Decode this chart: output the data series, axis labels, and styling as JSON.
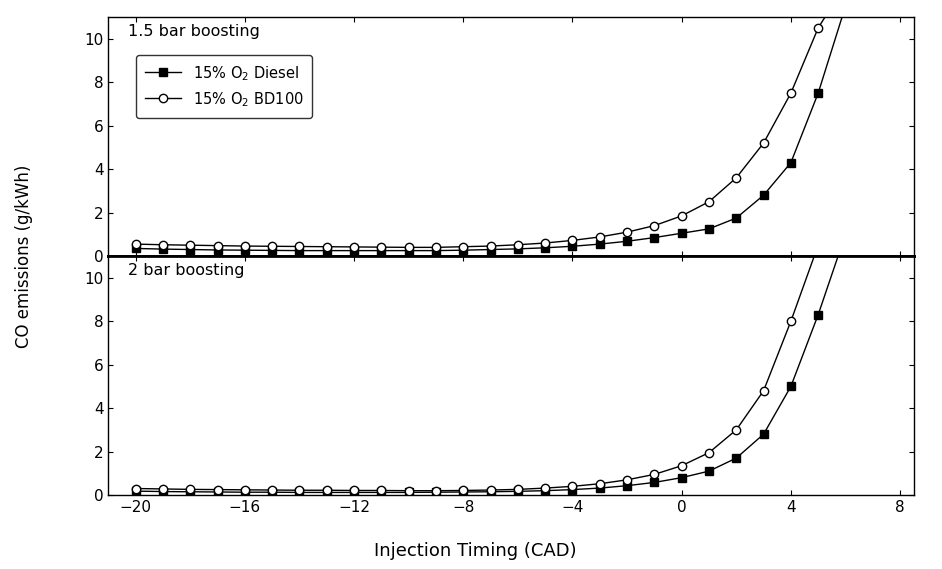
{
  "xlabel": "Injection Timing (CAD)",
  "ylabel": "CO emissions (g/kWh)",
  "xlim": [
    -21,
    8.5
  ],
  "xticks": [
    -20,
    -16,
    -12,
    -8,
    -4,
    0,
    4,
    8
  ],
  "top_label": "1.5 bar boosting",
  "bottom_label": "2 bar boosting",
  "ylim": [
    0,
    11
  ],
  "yticks": [
    0,
    2,
    4,
    6,
    8,
    10
  ],
  "legend_labels": [
    "15% O$_2$ Diesel",
    "15% O$_2$ BD100"
  ],
  "top_diesel_x": [
    -20,
    -19,
    -18,
    -17,
    -16,
    -15,
    -14,
    -13,
    -12,
    -11,
    -10,
    -9,
    -8,
    -7,
    -6,
    -5,
    -4,
    -3,
    -2,
    -1,
    0,
    1,
    2,
    3,
    4,
    5,
    6
  ],
  "top_diesel_y": [
    0.35,
    0.32,
    0.3,
    0.28,
    0.27,
    0.26,
    0.25,
    0.25,
    0.25,
    0.25,
    0.25,
    0.25,
    0.27,
    0.3,
    0.33,
    0.38,
    0.45,
    0.55,
    0.68,
    0.85,
    1.05,
    1.25,
    1.75,
    2.8,
    4.3,
    7.5,
    11.5
  ],
  "top_bd100_x": [
    -20,
    -19,
    -18,
    -17,
    -16,
    -15,
    -14,
    -13,
    -12,
    -11,
    -10,
    -9,
    -8,
    -7,
    -6,
    -5,
    -4,
    -3,
    -2,
    -1,
    0,
    1,
    2,
    3,
    4,
    5,
    6
  ],
  "top_bd100_y": [
    0.55,
    0.52,
    0.5,
    0.48,
    0.46,
    0.45,
    0.44,
    0.43,
    0.42,
    0.41,
    0.4,
    0.4,
    0.43,
    0.46,
    0.52,
    0.6,
    0.72,
    0.88,
    1.1,
    1.4,
    1.85,
    2.5,
    3.6,
    5.2,
    7.5,
    10.5,
    12.5
  ],
  "bot_diesel_x": [
    -20,
    -19,
    -18,
    -17,
    -16,
    -15,
    -14,
    -13,
    -12,
    -11,
    -10,
    -9,
    -8,
    -7,
    -6,
    -5,
    -4,
    -3,
    -2,
    -1,
    0,
    1,
    2,
    3,
    4,
    5,
    6
  ],
  "bot_diesel_y": [
    0.18,
    0.16,
    0.15,
    0.14,
    0.13,
    0.13,
    0.12,
    0.12,
    0.12,
    0.12,
    0.12,
    0.13,
    0.14,
    0.15,
    0.17,
    0.2,
    0.25,
    0.32,
    0.43,
    0.58,
    0.8,
    1.1,
    1.7,
    2.8,
    5.0,
    8.3,
    12.0
  ],
  "bot_bd100_x": [
    -20,
    -19,
    -18,
    -17,
    -16,
    -15,
    -14,
    -13,
    -12,
    -11,
    -10,
    -9,
    -8,
    -7,
    -6,
    -5,
    -4,
    -3,
    -2,
    -1,
    0,
    1,
    2,
    3,
    4,
    5,
    6
  ],
  "bot_bd100_y": [
    0.3,
    0.28,
    0.26,
    0.25,
    0.24,
    0.23,
    0.22,
    0.22,
    0.21,
    0.21,
    0.2,
    0.2,
    0.21,
    0.23,
    0.26,
    0.32,
    0.4,
    0.52,
    0.7,
    0.95,
    1.35,
    1.95,
    3.0,
    4.8,
    8.0,
    11.5,
    13.5
  ],
  "line_color": "#000000",
  "bg_color": "#ffffff",
  "marker_diesel": "s",
  "marker_bd100": "o",
  "markersize": 6,
  "linewidth": 1.0
}
